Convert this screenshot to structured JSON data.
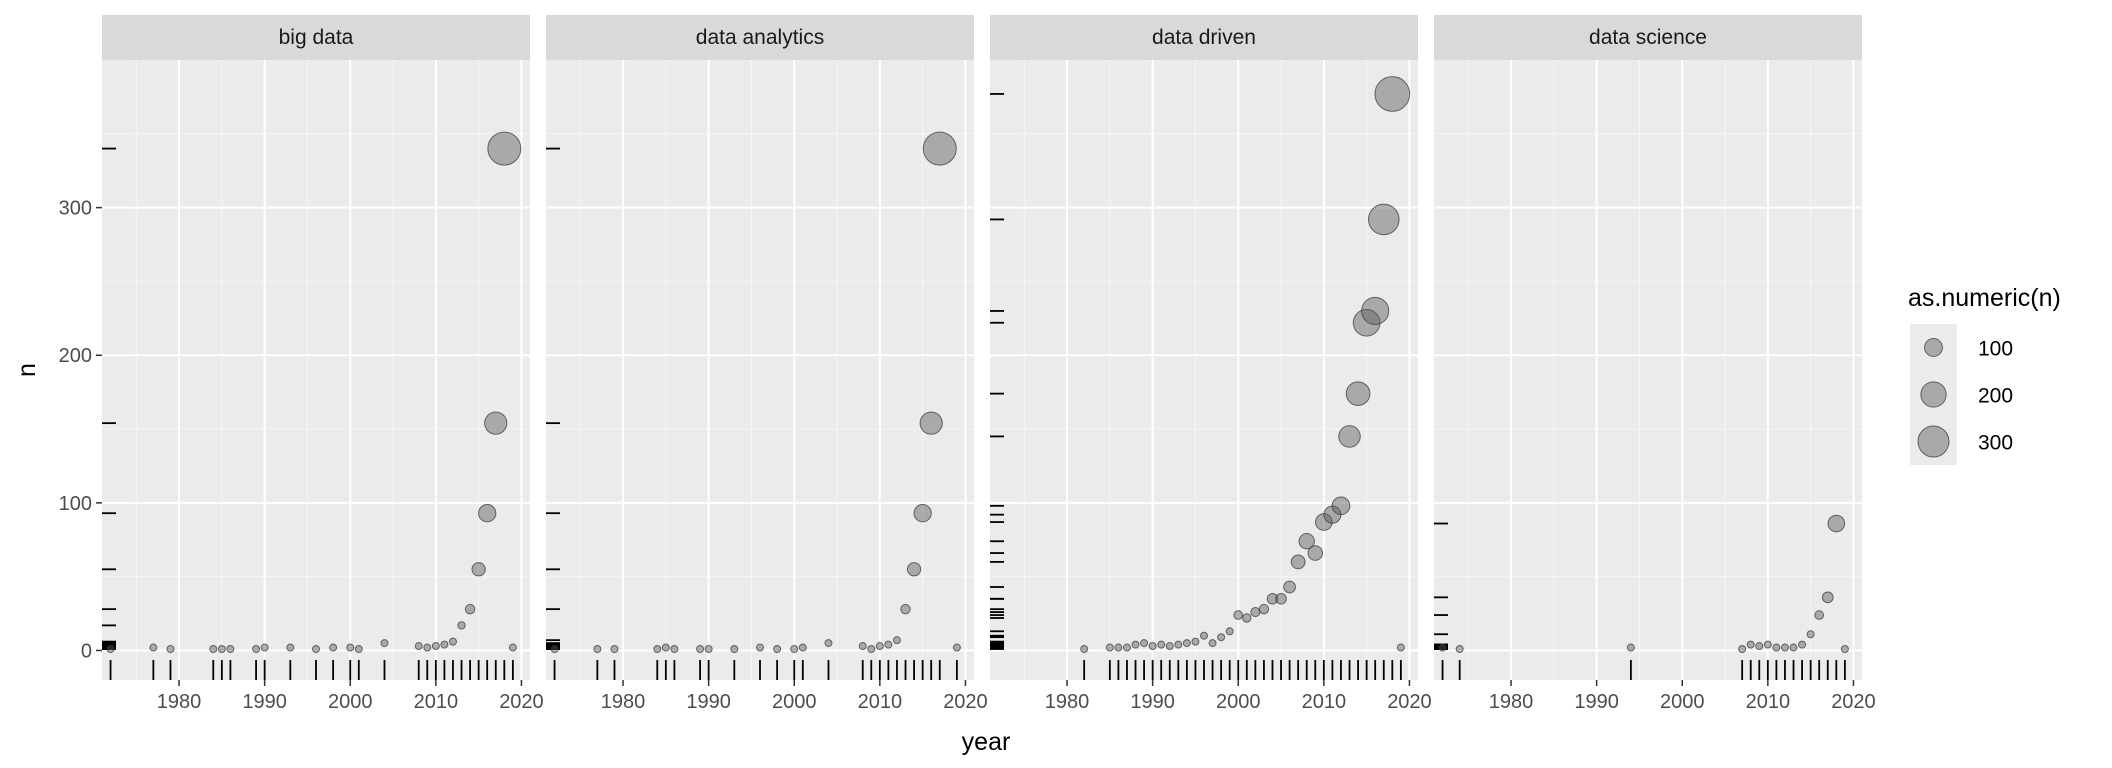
{
  "chart_data": {
    "type": "scatter",
    "xlabel": "year",
    "ylabel": "n",
    "xlim": [
      1971,
      2021
    ],
    "ylim": [
      -20,
      400
    ],
    "x_ticks": [
      1980,
      1990,
      2000,
      2010,
      2020
    ],
    "y_ticks": [
      0,
      100,
      200,
      300
    ],
    "grid": true,
    "legend": {
      "title": "as.numeric(n)",
      "position": "right",
      "sizes": [
        100,
        200,
        300
      ],
      "labels": [
        "100",
        "200",
        "300"
      ]
    },
    "colors": {
      "panel_bg": "#ebebeb",
      "strip_bg": "#d9d9d9",
      "grid": "#ffffff",
      "point_fill": "#595959",
      "point_stroke": "#333333",
      "rug": "#000000"
    },
    "facets": [
      {
        "name": "big data",
        "points": [
          [
            1972,
            1
          ],
          [
            1977,
            2
          ],
          [
            1979,
            1
          ],
          [
            1984,
            1
          ],
          [
            1985,
            1
          ],
          [
            1986,
            1
          ],
          [
            1989,
            1
          ],
          [
            1990,
            2
          ],
          [
            1993,
            2
          ],
          [
            1996,
            1
          ],
          [
            1998,
            2
          ],
          [
            2000,
            2
          ],
          [
            2001,
            1
          ],
          [
            2004,
            5
          ],
          [
            2008,
            3
          ],
          [
            2009,
            2
          ],
          [
            2010,
            3
          ],
          [
            2011,
            4
          ],
          [
            2012,
            6
          ],
          [
            2013,
            17
          ],
          [
            2014,
            28
          ],
          [
            2015,
            55
          ],
          [
            2016,
            93
          ],
          [
            2017,
            154
          ],
          [
            2018,
            340
          ],
          [
            2019,
            2
          ]
        ]
      },
      {
        "name": "data analytics",
        "points": [
          [
            1972,
            1
          ],
          [
            1977,
            1
          ],
          [
            1979,
            1
          ],
          [
            1984,
            1
          ],
          [
            1985,
            2
          ],
          [
            1986,
            1
          ],
          [
            1989,
            1
          ],
          [
            1990,
            1
          ],
          [
            1993,
            1
          ],
          [
            1996,
            2
          ],
          [
            1998,
            1
          ],
          [
            2000,
            1
          ],
          [
            2001,
            2
          ],
          [
            2004,
            5
          ],
          [
            2008,
            3
          ],
          [
            2009,
            1
          ],
          [
            2010,
            3
          ],
          [
            2011,
            4
          ],
          [
            2012,
            7
          ],
          [
            2013,
            28
          ],
          [
            2014,
            55
          ],
          [
            2015,
            93
          ],
          [
            2016,
            154
          ],
          [
            2017,
            340
          ],
          [
            2019,
            2
          ]
        ]
      },
      {
        "name": "data driven",
        "points": [
          [
            1982,
            1
          ],
          [
            1985,
            2
          ],
          [
            1986,
            2
          ],
          [
            1987,
            2
          ],
          [
            1988,
            4
          ],
          [
            1989,
            5
          ],
          [
            1990,
            3
          ],
          [
            1991,
            4
          ],
          [
            1992,
            3
          ],
          [
            1993,
            4
          ],
          [
            1994,
            5
          ],
          [
            1995,
            6
          ],
          [
            1996,
            10
          ],
          [
            1997,
            5
          ],
          [
            1998,
            9
          ],
          [
            1999,
            13
          ],
          [
            2000,
            24
          ],
          [
            2001,
            22
          ],
          [
            2002,
            26
          ],
          [
            2003,
            28
          ],
          [
            2004,
            35
          ],
          [
            2005,
            35
          ],
          [
            2006,
            43
          ],
          [
            2007,
            60
          ],
          [
            2008,
            74
          ],
          [
            2009,
            66
          ],
          [
            2010,
            87
          ],
          [
            2011,
            92
          ],
          [
            2012,
            98
          ],
          [
            2013,
            145
          ],
          [
            2014,
            174
          ],
          [
            2015,
            222
          ],
          [
            2016,
            230
          ],
          [
            2017,
            292
          ],
          [
            2018,
            377
          ],
          [
            2019,
            2
          ]
        ]
      },
      {
        "name": "data science",
        "points": [
          [
            1972,
            2
          ],
          [
            1974,
            1
          ],
          [
            1994,
            2
          ],
          [
            2007,
            1
          ],
          [
            2008,
            4
          ],
          [
            2009,
            3
          ],
          [
            2010,
            4
          ],
          [
            2011,
            2
          ],
          [
            2012,
            2
          ],
          [
            2013,
            2
          ],
          [
            2014,
            4
          ],
          [
            2015,
            11
          ],
          [
            2016,
            24
          ],
          [
            2017,
            36
          ],
          [
            2018,
            86
          ],
          [
            2019,
            1
          ]
        ]
      }
    ]
  }
}
